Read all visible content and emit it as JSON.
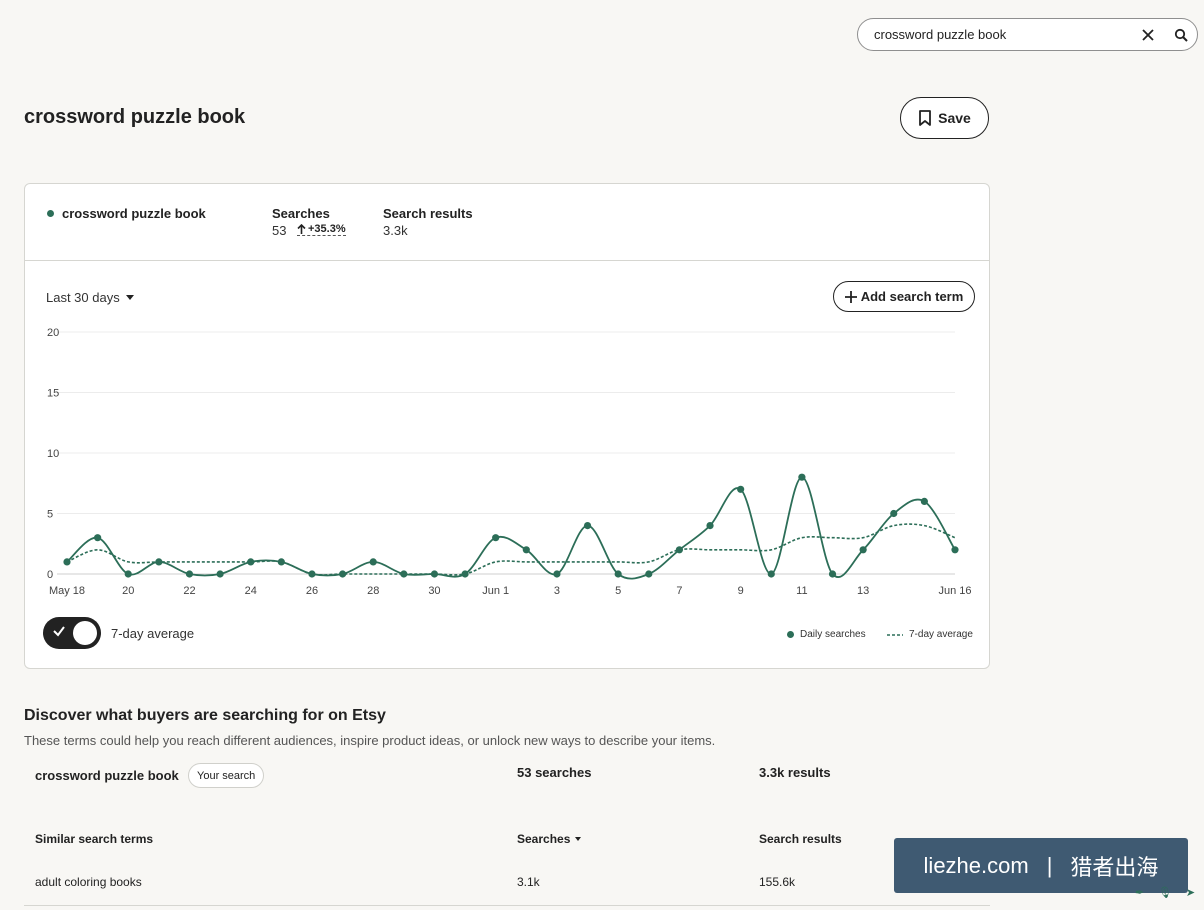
{
  "search": {
    "value": "crossword puzzle book"
  },
  "page": {
    "title": "crossword puzzle book",
    "save_label": "Save"
  },
  "summary": {
    "term": "crossword puzzle book",
    "searches_label": "Searches",
    "searches_value": "53",
    "searches_change": "+35.3%",
    "results_label": "Search results",
    "results_value": "3.3k"
  },
  "controls": {
    "range_label": "Last 30 days",
    "add_term_label": "Add search term",
    "toggle_label": "7-day average"
  },
  "legend": {
    "daily": "Daily searches",
    "avg": "7-day average"
  },
  "colors": {
    "series": "#2c6e58",
    "avg": "#2c6e58"
  },
  "chart_data": {
    "type": "line",
    "ylim": [
      0,
      20
    ],
    "yticks": [
      0,
      5,
      10,
      15,
      20
    ],
    "x": [
      "May 18",
      "May 19",
      "May 20",
      "May 21",
      "May 22",
      "May 23",
      "May 24",
      "May 25",
      "May 26",
      "May 27",
      "May 28",
      "May 29",
      "May 30",
      "May 31",
      "Jun 1",
      "Jun 2",
      "Jun 3",
      "Jun 4",
      "Jun 5",
      "Jun 6",
      "Jun 7",
      "Jun 8",
      "Jun 9",
      "Jun 10",
      "Jun 11",
      "Jun 12",
      "Jun 13",
      "Jun 14",
      "Jun 15",
      "Jun 16"
    ],
    "xtick_labels": [
      "May 18",
      "20",
      "22",
      "24",
      "26",
      "28",
      "30",
      "Jun 1",
      "3",
      "5",
      "7",
      "9",
      "11",
      "13",
      "Jun 16"
    ],
    "series": [
      {
        "name": "Daily searches",
        "values": [
          1,
          3,
          0,
          1,
          0,
          0,
          1,
          1,
          0,
          0,
          1,
          0,
          0,
          0,
          3,
          2,
          0,
          4,
          0,
          0,
          2,
          4,
          7,
          0,
          8,
          0,
          2,
          5,
          6,
          2
        ]
      },
      {
        "name": "7-day average",
        "values": [
          1,
          2,
          1,
          1,
          1,
          1,
          1,
          1,
          0,
          0,
          0,
          0,
          0,
          0,
          1,
          1,
          1,
          1,
          1,
          1,
          2,
          2,
          2,
          2,
          3,
          3,
          3,
          4,
          4,
          3
        ]
      }
    ],
    "grid": true
  },
  "discover": {
    "title": "Discover what buyers are searching for on Etsy",
    "subtitle": "These terms could help you reach different audiences, inspire product ideas, or unlock new ways to describe your items.",
    "current": {
      "term": "crossword puzzle book",
      "badge": "Your search",
      "searches": "53 searches",
      "results": "3.3k results"
    },
    "headers": {
      "term": "Similar search terms",
      "searches": "Searches",
      "results": "Search results"
    },
    "rows": [
      {
        "term": "adult coloring books",
        "searches": "3.1k",
        "results": "155.6k"
      }
    ]
  },
  "watermark": {
    "site": "liezhe.com",
    "sep": "|",
    "name": "猎者出海"
  }
}
